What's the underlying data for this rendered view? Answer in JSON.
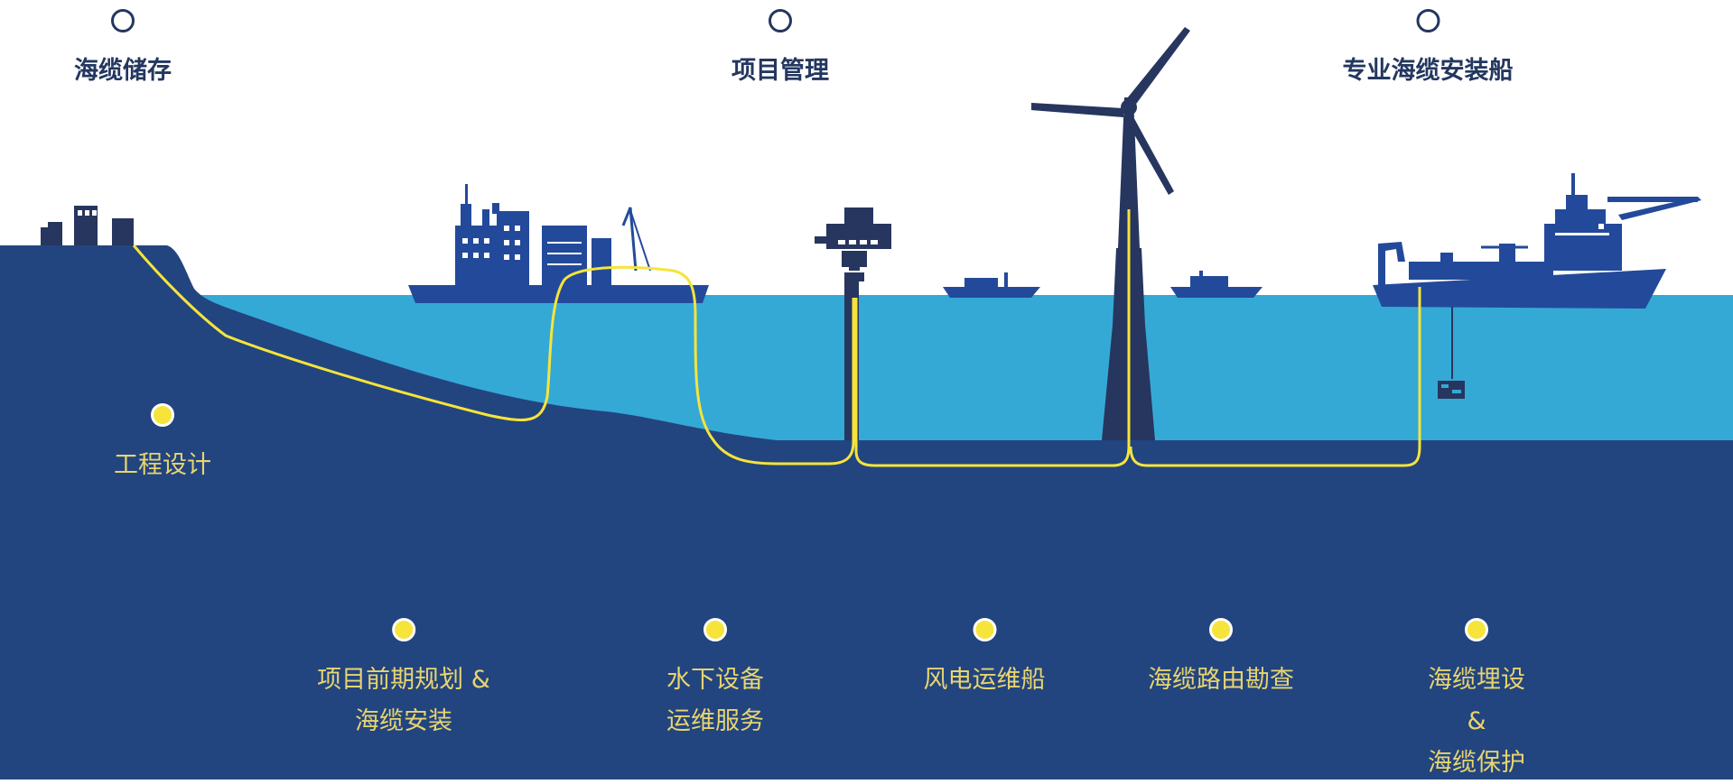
{
  "top_labels": [
    {
      "name": "cable-storage",
      "text": "海缆储存"
    },
    {
      "name": "project-management",
      "text": "项目管理"
    },
    {
      "name": "cable-installation-vessel",
      "text": "专业海缆安装船"
    }
  ],
  "bottom_labels": {
    "engineering": "工程设计",
    "planning": [
      "项目前期规划 &",
      "海缆安装"
    ],
    "subsea": [
      "水下设备",
      "运维服务"
    ],
    "wind_vessel": "风电运维船",
    "route_survey": "海缆路由勘查",
    "burial": [
      "海缆埋设",
      "&",
      "海缆保护"
    ]
  },
  "colors": {
    "deep_navy": "#22457f",
    "sea_light": "#35a9d6",
    "structure_dark": "#27365f",
    "vessel_blue": "#234a9a",
    "cable_yellow": "#f6e43a",
    "label_gold": "#e8d470",
    "label_dark": "#23375f"
  }
}
